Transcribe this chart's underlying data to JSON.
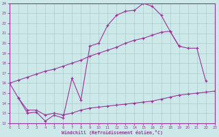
{
  "bg_color": "#cce8e8",
  "line_color": "#993399",
  "grid_color": "#aacccc",
  "xlabel": "Windchill (Refroidissement éolien,°C)",
  "xlim": [
    0,
    23
  ],
  "ylim": [
    12,
    24
  ],
  "xticks": [
    0,
    1,
    2,
    3,
    4,
    5,
    6,
    7,
    8,
    9,
    10,
    11,
    12,
    13,
    14,
    15,
    16,
    17,
    18,
    19,
    20,
    21,
    22,
    23
  ],
  "yticks": [
    12,
    13,
    14,
    15,
    16,
    17,
    18,
    19,
    20,
    21,
    22,
    23,
    24
  ],
  "curve1_x": [
    0,
    1,
    2,
    3,
    4,
    5,
    6,
    7,
    8,
    9,
    10,
    11,
    12,
    13,
    14,
    15,
    16,
    17,
    18,
    19
  ],
  "curve1_y": [
    16.0,
    14.5,
    13.0,
    13.1,
    12.2,
    12.8,
    12.5,
    16.5,
    14.3,
    19.7,
    20.0,
    21.8,
    22.8,
    23.2,
    23.3,
    24.0,
    23.7,
    22.8,
    21.2,
    19.7
  ],
  "curve2_x": [
    0,
    1,
    2,
    3,
    4,
    5,
    6,
    7,
    8,
    9,
    10,
    11,
    12,
    13,
    14,
    15,
    16,
    17,
    18,
    19,
    20,
    21,
    22
  ],
  "curve2_y": [
    16.0,
    16.3,
    16.6,
    16.9,
    17.2,
    17.4,
    17.7,
    18.0,
    18.3,
    18.7,
    19.0,
    19.3,
    19.6,
    20.0,
    20.3,
    20.5,
    20.8,
    21.1,
    21.2,
    19.7,
    19.5,
    19.5,
    16.2
  ],
  "curve3_x": [
    1,
    2,
    3,
    4,
    5,
    6,
    7,
    8,
    9,
    10,
    11,
    12,
    13,
    14,
    15,
    16,
    17,
    18,
    19,
    20,
    21,
    22,
    23
  ],
  "curve3_y": [
    14.5,
    13.3,
    13.3,
    12.8,
    13.0,
    12.8,
    13.0,
    13.3,
    13.5,
    13.6,
    13.7,
    13.8,
    13.9,
    14.0,
    14.1,
    14.2,
    14.4,
    14.6,
    14.8,
    14.9,
    15.0,
    15.1,
    15.2
  ]
}
